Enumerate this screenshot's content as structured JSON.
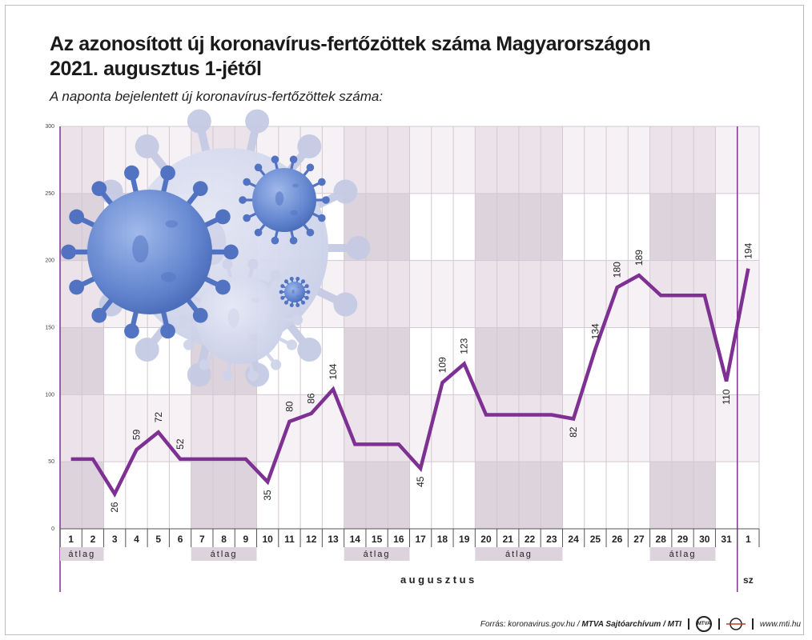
{
  "title_lines": [
    "Az azonosított új koronavírus-fertőzöttek száma Magyarországon",
    "2021. augusztus 1-jétől"
  ],
  "subtitle": "A naponta bejelentett új koronavírus-fertőzöttek száma:",
  "footer": {
    "source_prefix": "Forrás: koronavirus.gov.hu / ",
    "source_bold": "MTVA Sajtóarchívum / MTI",
    "logo_text": "MTVA",
    "site": "www.mti.hu"
  },
  "colors": {
    "line": "#7e3193",
    "band_dark": "#ddd3dc",
    "band_light": "#ece3ea",
    "divider": "#7e3193"
  },
  "chart_data": {
    "type": "line",
    "title": "Az azonosított új koronavírus-fertőzöttek száma Magyarországon 2021. augusztus 1-jétől",
    "subtitle": "A naponta bejelentett új koronavírus-fertőzöttek száma:",
    "ylim": [
      0,
      300
    ],
    "yticks": [
      0,
      50,
      100,
      150,
      200,
      250,
      300
    ],
    "grid": true,
    "x": [
      "1",
      "2",
      "3",
      "4",
      "5",
      "6",
      "7",
      "8",
      "9",
      "10",
      "11",
      "12",
      "13",
      "14",
      "15",
      "16",
      "17",
      "18",
      "19",
      "20",
      "21",
      "22",
      "23",
      "24",
      "25",
      "26",
      "27",
      "28",
      "29",
      "30",
      "31",
      "1"
    ],
    "values": [
      52,
      52,
      26,
      59,
      72,
      52,
      52,
      52,
      52,
      35,
      80,
      86,
      104,
      63,
      63,
      63,
      45,
      109,
      123,
      85,
      85,
      85,
      85,
      82,
      134,
      180,
      189,
      174,
      174,
      174,
      110,
      194
    ],
    "labels": [
      "",
      "",
      "26",
      "59",
      "72",
      "52",
      "",
      "",
      "",
      "35",
      "80",
      "86",
      "104",
      "",
      "",
      "",
      "45",
      "109",
      "123",
      "",
      "",
      "",
      "",
      "82",
      "134",
      "180",
      "189",
      "",
      "",
      "",
      "110",
      "194"
    ],
    "atlag_groups": [
      {
        "from": 0,
        "to": 1,
        "label": "átlag"
      },
      {
        "from": 6,
        "to": 8,
        "label": "átlag"
      },
      {
        "from": 13,
        "to": 15,
        "label": "átlag"
      },
      {
        "from": 19,
        "to": 22,
        "label": "átlag"
      },
      {
        "from": 27,
        "to": 29,
        "label": "átlag"
      }
    ],
    "month_labels": [
      "augusztus",
      "sz"
    ]
  }
}
